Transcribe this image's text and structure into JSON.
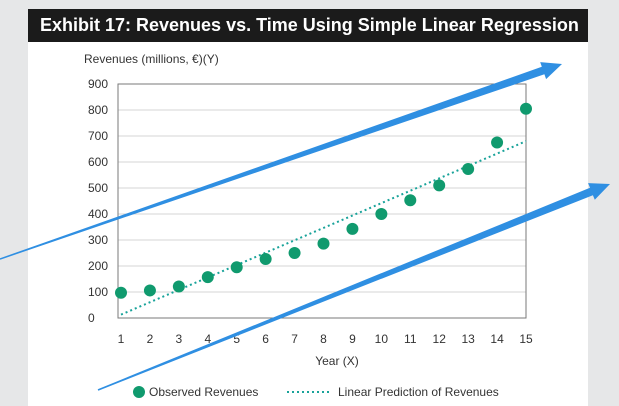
{
  "title": "Exhibit 17: Revenues vs. Time Using Simple Linear Regression",
  "colors": {
    "title_bg": "#1b1b1b",
    "observed": "#109a6e",
    "prediction": "#19a39a",
    "arrows": "#2f8fe2",
    "axis_text": "#333333"
  },
  "chart_data": {
    "type": "scatter",
    "ylabel": "Revenues (millions, €)(Y)",
    "xlabel": "Year (X)",
    "x": [
      1,
      2,
      3,
      4,
      5,
      6,
      7,
      8,
      9,
      10,
      11,
      12,
      13,
      14,
      15
    ],
    "ylim": [
      0,
      900
    ],
    "xlim": [
      1,
      15
    ],
    "yticks": [
      0,
      100,
      200,
      300,
      400,
      500,
      600,
      700,
      800,
      900
    ],
    "xticks": [
      1,
      2,
      3,
      4,
      5,
      6,
      7,
      8,
      9,
      10,
      11,
      12,
      13,
      14,
      15
    ],
    "grid": "horizontal",
    "legend_position": "bottom",
    "series": [
      {
        "name": "Observed Revenues",
        "values": [
          97,
          106,
          121,
          157,
          195,
          227,
          250,
          286,
          343,
          400,
          453,
          510,
          573,
          675,
          805
        ]
      },
      {
        "name": "Linear Prediction of Revenues",
        "style": "dotted-line",
        "x": [
          1,
          15
        ],
        "values": [
          13,
          680
        ]
      }
    ]
  }
}
